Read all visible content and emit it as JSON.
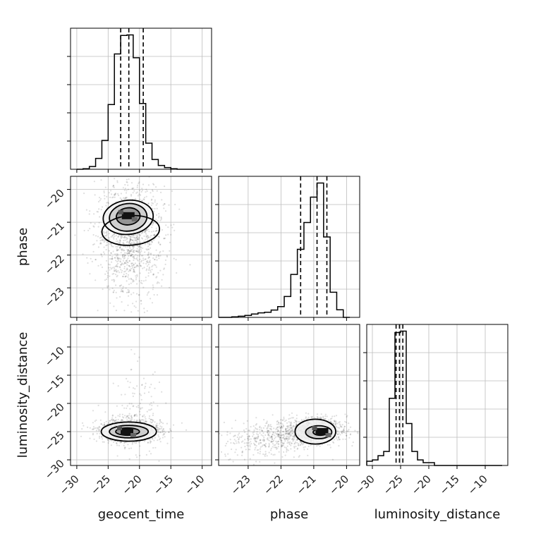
{
  "chart_data": {
    "type": "corner",
    "title": "",
    "grid": true,
    "parameters": [
      "geocent_time",
      "phase",
      "luminosity_distance"
    ],
    "axes": {
      "geocent_time": {
        "range": [
          -31,
          -8.5
        ],
        "ticks": [
          -30,
          -25,
          -20,
          -15,
          -10
        ],
        "tick_labels": [
          "−30",
          "−25",
          "−20",
          "−15",
          "−10"
        ],
        "label": "geocent_time"
      },
      "phase": {
        "range": [
          -23.9,
          -19.6
        ],
        "ticks": [
          -23,
          -22,
          -21,
          -20
        ],
        "tick_labels": [
          "−23",
          "−22",
          "−21",
          "−20"
        ],
        "label": "phase"
      },
      "luminosity_distance": {
        "range": [
          -31,
          -6
        ],
        "ticks": [
          -30,
          -25,
          -20,
          -15,
          -10
        ],
        "tick_labels": [
          "−30",
          "−25",
          "−20",
          "−15",
          "−10"
        ],
        "label": "luminosity_distance"
      }
    },
    "histograms": [
      {
        "param": "geocent_time",
        "bin_edges": [
          -30,
          -29,
          -28,
          -27,
          -26,
          -25,
          -24,
          -23,
          -22,
          -21,
          -20,
          -19,
          -18,
          -17,
          -16,
          -15,
          -14,
          -13,
          -12,
          -11,
          -10
        ],
        "counts": [
          0,
          1,
          5,
          20,
          53,
          119,
          212,
          246,
          247,
          205,
          121,
          48,
          18,
          7,
          3,
          1,
          0,
          0,
          0,
          0
        ],
        "quantiles": [
          -23.0,
          -21.7,
          -19.4
        ]
      },
      {
        "param": "phase",
        "bin_edges": [
          -23.9,
          -23.7,
          -23.5,
          -23.3,
          -23.1,
          -22.9,
          -22.7,
          -22.5,
          -22.3,
          -22.1,
          -21.9,
          -21.7,
          -21.5,
          -21.3,
          -21.1,
          -20.9,
          -20.7,
          -20.5,
          -20.3,
          -20.1,
          -19.9
        ],
        "counts": [
          0,
          0,
          2,
          4,
          7,
          12,
          16,
          18,
          26,
          38,
          74,
          152,
          241,
          336,
          426,
          476,
          285,
          89,
          27,
          0
        ],
        "quantiles": [
          -21.4,
          -20.9,
          -20.6
        ]
      },
      {
        "param": "luminosity_distance",
        "bin_edges": [
          -31,
          -30,
          -29,
          -28,
          -27,
          -26,
          -25,
          -24,
          -23,
          -22,
          -21,
          -20,
          -19,
          -18,
          -17,
          -16,
          -15,
          -14,
          -13,
          -12,
          -11,
          -10,
          -9,
          -8,
          -7
        ],
        "counts": [
          3,
          4,
          7,
          10,
          48,
          95,
          96,
          30,
          10,
          4,
          2,
          2,
          0,
          0,
          0,
          0,
          0,
          0,
          0,
          0,
          0,
          0,
          0,
          0
        ],
        "quantiles": [
          -25.8,
          -25.2,
          -24.6
        ]
      }
    ],
    "joint": [
      {
        "x": "geocent_time",
        "y": "phase",
        "density_peak": {
          "x": -21.8,
          "y": -20.8
        },
        "scatter_clusters": [
          {
            "cx": -21.5,
            "cy": -21.3,
            "sx": 2.7,
            "sy": 0.72,
            "n": 1100
          },
          {
            "cx": -21.2,
            "cy": -22.5,
            "sx": 2.6,
            "sy": 0.6,
            "n": 200
          }
        ],
        "contours": [
          {
            "cx": -21.8,
            "cy": -20.85,
            "rx": 4.0,
            "ry": 0.52,
            "rot": -6
          },
          {
            "cx": -21.8,
            "cy": -20.85,
            "rx": 3.0,
            "ry": 0.42,
            "rot": -6
          },
          {
            "cx": -21.8,
            "cy": -20.82,
            "rx": 1.9,
            "ry": 0.26,
            "rot": -6
          },
          {
            "cx": -21.4,
            "cy": -21.25,
            "rx": 4.6,
            "ry": 0.45,
            "rot": -4
          }
        ]
      },
      {
        "x": "geocent_time",
        "y": "luminosity_distance",
        "density_peak": {
          "x": -22.0,
          "y": -25.0
        },
        "scatter_clusters": [
          {
            "cx": -21.5,
            "cy": -24.8,
            "sx": 2.5,
            "sy": 1.1,
            "n": 1000
          },
          {
            "cx": -20.5,
            "cy": -22.0,
            "sx": 2.0,
            "sy": 4.5,
            "n": 150
          }
        ],
        "contours": [
          {
            "cx": -21.7,
            "cy": -25.0,
            "rx": 4.4,
            "ry": 1.7,
            "rot": 0
          },
          {
            "cx": -21.7,
            "cy": -25.0,
            "rx": 3.1,
            "ry": 1.1,
            "rot": 0
          },
          {
            "cx": -21.9,
            "cy": -25.0,
            "rx": 1.9,
            "ry": 0.65,
            "rot": 0
          }
        ]
      },
      {
        "x": "phase",
        "y": "luminosity_distance",
        "density_peak": {
          "x": -20.75,
          "y": -25.0
        },
        "scatter_clusters": [
          {
            "cx": -21.1,
            "cy": -24.8,
            "sx": 0.55,
            "sy": 1.2,
            "n": 900
          },
          {
            "cx": -22.4,
            "cy": -26.5,
            "sx": 0.7,
            "sy": 1.6,
            "n": 350
          }
        ],
        "contours": [
          {
            "cx": -20.95,
            "cy": -25.0,
            "rx": 0.62,
            "ry": 2.2,
            "rot": 0
          },
          {
            "cx": -20.85,
            "cy": -25.1,
            "rx": 0.4,
            "ry": 1.15,
            "rot": 0
          },
          {
            "cx": -20.8,
            "cy": -25.1,
            "rx": 0.22,
            "ry": 0.55,
            "rot": 0
          }
        ]
      }
    ]
  }
}
